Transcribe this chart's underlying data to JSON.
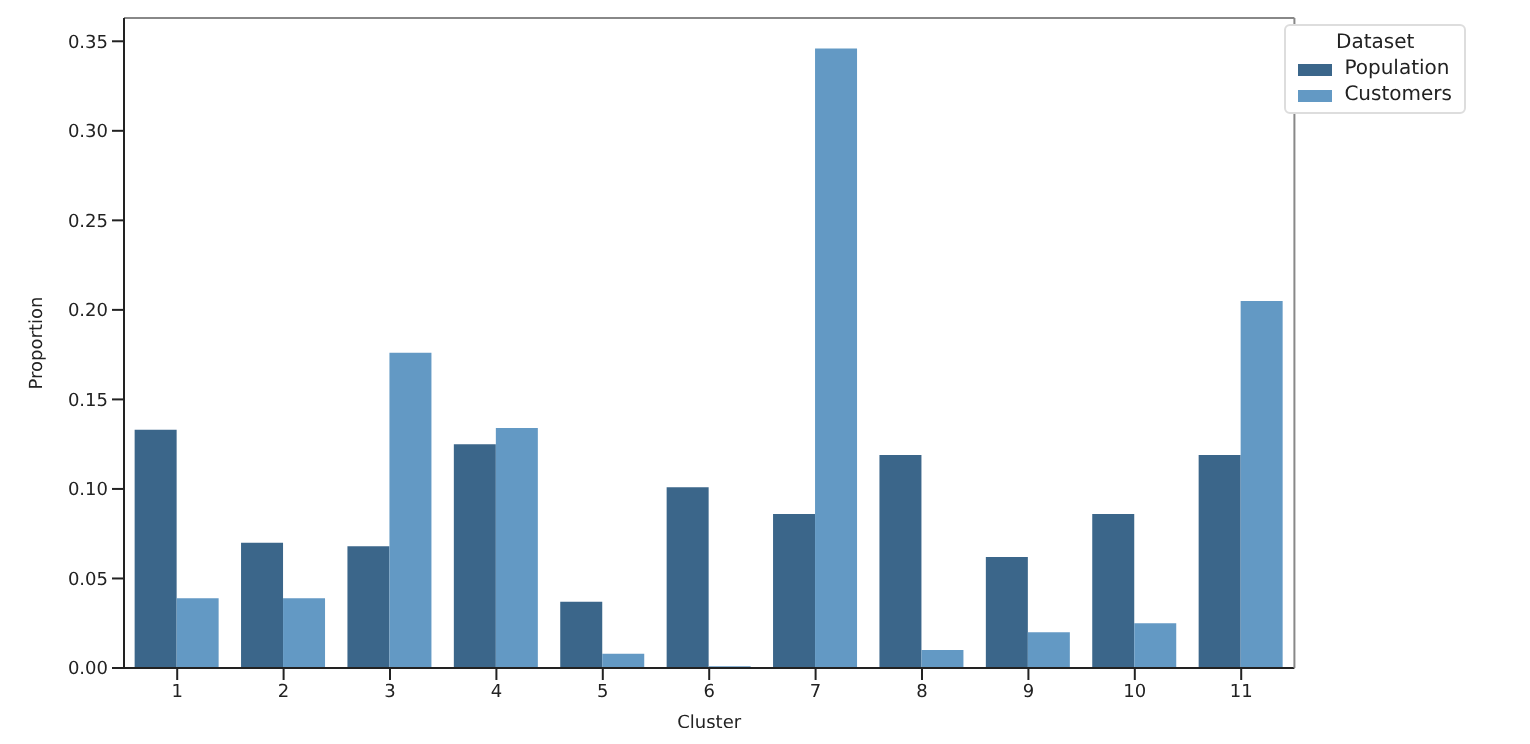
{
  "chart_data": {
    "type": "bar",
    "xlabel": "Cluster",
    "ylabel": "Proportion",
    "legend_title": "Dataset",
    "legend": "top right",
    "grid": false,
    "categories": [
      "1",
      "2",
      "3",
      "4",
      "5",
      "6",
      "7",
      "8",
      "9",
      "10",
      "11"
    ],
    "series": [
      {
        "name": "Population",
        "color": "#3b668a",
        "values": [
          0.133,
          0.07,
          0.068,
          0.125,
          0.037,
          0.101,
          0.086,
          0.119,
          0.062,
          0.086,
          0.119
        ]
      },
      {
        "name": "Customers",
        "color": "#6399c4",
        "values": [
          0.039,
          0.039,
          0.176,
          0.134,
          0.008,
          0.001,
          0.346,
          0.01,
          0.02,
          0.025,
          0.205
        ]
      }
    ],
    "ylim": [
      0,
      0.363
    ],
    "yticks": [
      {
        "value": 0,
        "label": "0.00"
      },
      {
        "value": 0.05,
        "label": "0.05"
      },
      {
        "value": 0.1,
        "label": "0.10"
      },
      {
        "value": 0.15,
        "label": "0.15"
      },
      {
        "value": 0.2,
        "label": "0.20"
      },
      {
        "value": 0.25,
        "label": "0.25"
      },
      {
        "value": 0.3,
        "label": "0.30"
      },
      {
        "value": 0.35,
        "label": "0.35"
      }
    ]
  }
}
